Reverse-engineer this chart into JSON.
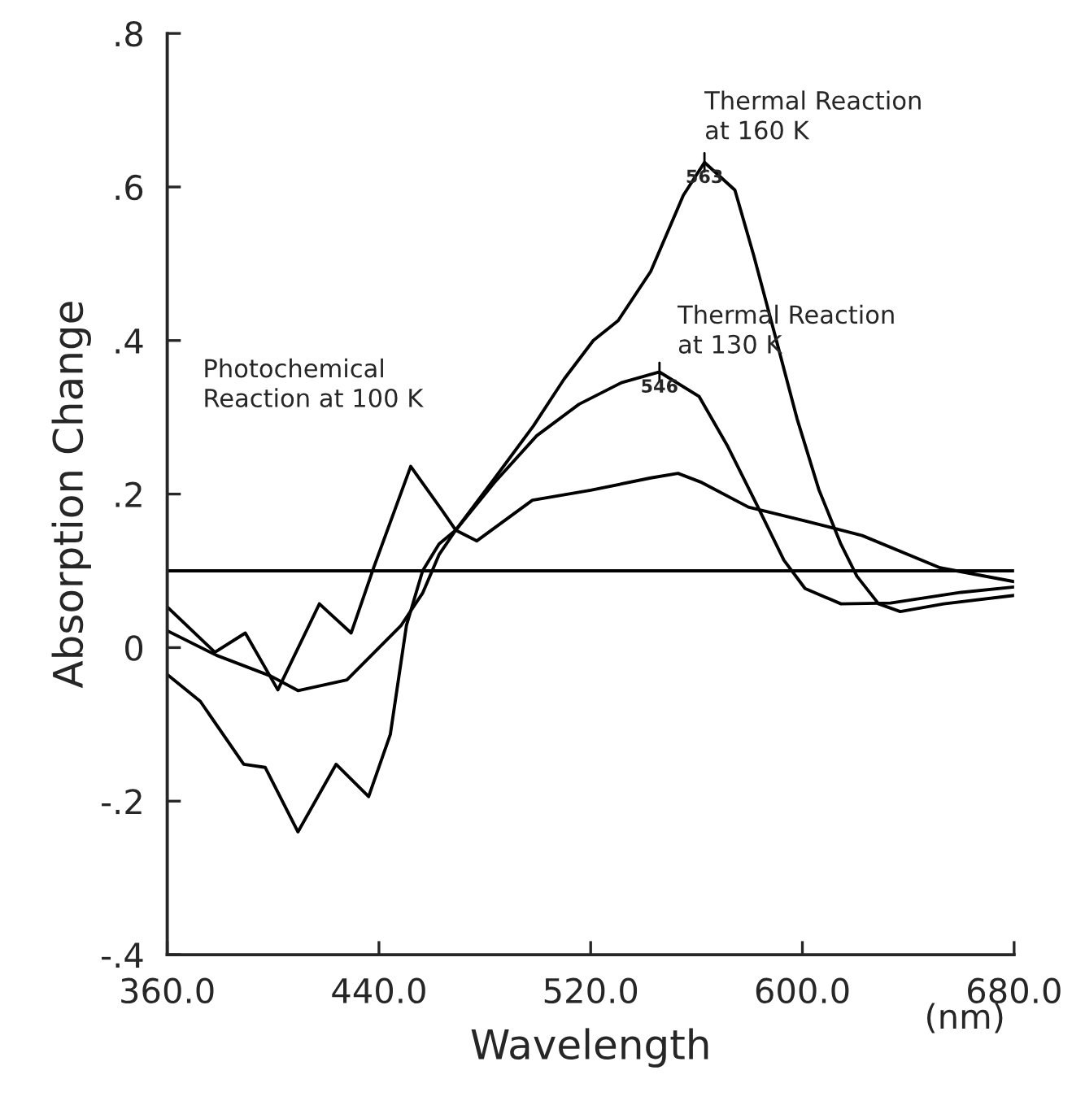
{
  "chart_data": {
    "type": "line",
    "xlabel": "Wavelength",
    "ylabel": "Absorption Change",
    "xlim": [
      360,
      680
    ],
    "ylim": [
      -0.4,
      0.8
    ],
    "xticks": [
      {
        "value": 360,
        "label": "360.0"
      },
      {
        "value": 440,
        "label": "440.0"
      },
      {
        "value": 520,
        "label": "520.0"
      },
      {
        "value": 600,
        "label": "600.0"
      },
      {
        "value": 680,
        "label": "680.0"
      }
    ],
    "yticks": [
      {
        "value": -0.4,
        "label": "-.4"
      },
      {
        "value": -0.2,
        "label": "-.2"
      },
      0,
      {
        "value": 0.2,
        "label": ".2"
      },
      {
        "value": 0.4,
        "label": ".4"
      },
      {
        "value": 0.6,
        "label": ".6"
      },
      {
        "value": 0.8,
        "label": ".8"
      }
    ],
    "grid": false,
    "legend": false,
    "marker": "none",
    "line_style": "solid",
    "ref_lines": [
      {
        "axis": "y",
        "value": 0.1,
        "color": "#000000"
      }
    ],
    "series": [
      {
        "color": "#000000",
        "x": [
          360,
          378,
          389.5,
          401.8,
          417.5,
          429.5,
          438,
          452,
          463.8,
          469,
          477,
          498,
          520,
          542.7,
          553,
          562,
          579.6,
          601,
          622.6,
          652,
          680
        ],
        "values": [
          0.053,
          -0.006,
          0.019,
          -0.055,
          0.057,
          0.019,
          0.104,
          0.236,
          0.179,
          0.153,
          0.139,
          0.192,
          0.205,
          0.221,
          0.227,
          0.215,
          0.183,
          0.165,
          0.146,
          0.104,
          0.086
        ]
      },
      {
        "color": "#000000",
        "x": [
          360,
          378.6,
          399.1,
          409.4,
          427.9,
          448.4,
          456.5,
          462.7,
          469,
          483.6,
          499.6,
          515.6,
          531.6,
          546,
          561,
          571.8,
          582.5,
          593,
          601,
          614.6,
          633.3,
          660,
          680
        ],
        "values": [
          0.022,
          -0.01,
          -0.037,
          -0.056,
          -0.042,
          0.029,
          0.071,
          0.121,
          0.153,
          0.215,
          0.276,
          0.317,
          0.345,
          0.359,
          0.327,
          0.262,
          0.188,
          0.114,
          0.077,
          0.057,
          0.058,
          0.072,
          0.079
        ]
      },
      {
        "color": "#000000",
        "x": [
          360,
          372.5,
          388.9,
          397,
          409.4,
          423.8,
          436.1,
          444.3,
          450.4,
          456.5,
          462.7,
          469,
          483.6,
          498.4,
          510,
          521,
          530.4,
          542.7,
          555,
          563,
          574.5,
          581.6,
          589.8,
          598,
          606.2,
          614.4,
          620.6,
          628.8,
          637,
          653.4,
          680
        ],
        "values": [
          -0.035,
          -0.07,
          -0.152,
          -0.156,
          -0.24,
          -0.152,
          -0.194,
          -0.113,
          0.029,
          0.1,
          0.135,
          0.153,
          0.22,
          0.289,
          0.35,
          0.4,
          0.426,
          0.49,
          0.589,
          0.632,
          0.596,
          0.511,
          0.405,
          0.298,
          0.206,
          0.136,
          0.093,
          0.057,
          0.047,
          0.057,
          0.068
        ]
      }
    ],
    "annotations": [
      {
        "text": "Photochemical\nReaction at 100 K",
        "x": 452,
        "y": 0.236
      },
      {
        "text": "Thermal Reaction\nat 130 K",
        "x": 546,
        "y": 0.359
      },
      {
        "text": "Thermal Reaction\nat 160 K",
        "x": 563,
        "y": 0.632
      },
      {
        "text": "546",
        "x": 546,
        "y": 0.359
      },
      {
        "text": "563",
        "x": 563,
        "y": 0.632
      },
      "(nm)"
    ]
  }
}
